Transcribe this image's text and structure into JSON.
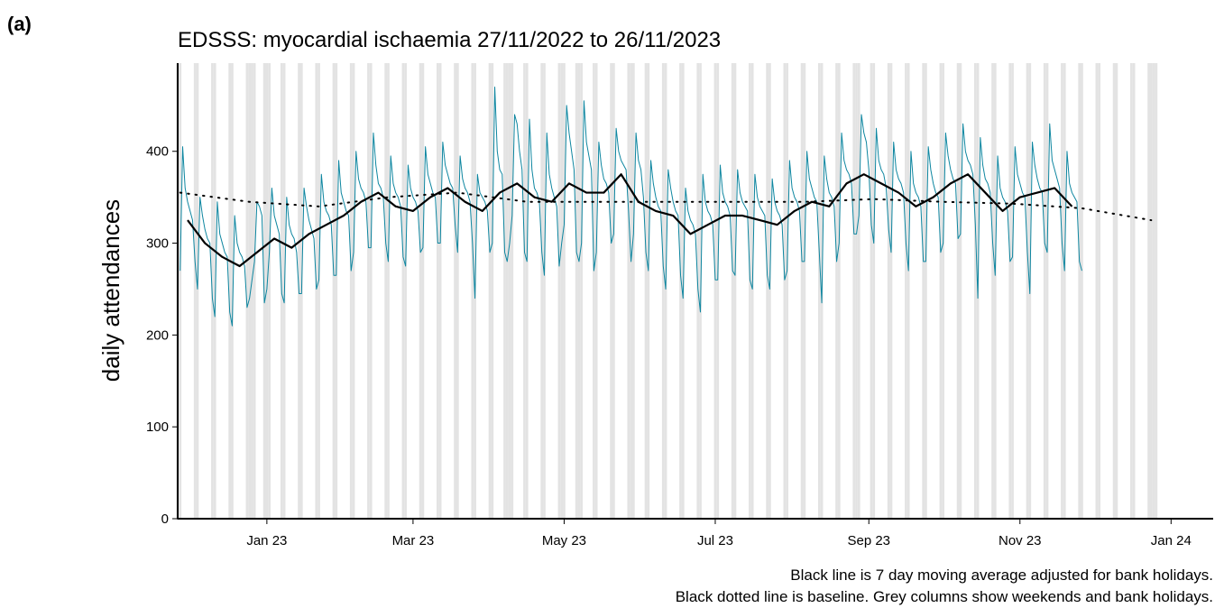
{
  "panel_label": "(a)",
  "chart_data": {
    "type": "line",
    "title": "EDSSS: myocardial ischaemia 27/11/2022 to 26/11/2023",
    "y_label": "daily attendances",
    "notes": [
      "Black line is 7 day moving average adjusted for bank holidays.",
      "Black dotted line is baseline. Grey columns show weekends and bank holidays."
    ],
    "xlim": [
      "2022-11-26",
      "2024-01-18"
    ],
    "xticks": [
      {
        "value": "2023-01-01",
        "label": "Jan 23"
      },
      {
        "value": "2023-03-01",
        "label": "Mar 23"
      },
      {
        "value": "2023-05-01",
        "label": "May 23"
      },
      {
        "value": "2023-07-01",
        "label": "Jul 23"
      },
      {
        "value": "2023-09-01",
        "label": "Sep 23"
      },
      {
        "value": "2023-11-01",
        "label": "Nov 23"
      },
      {
        "value": "2024-01-01",
        "label": "Jan 24"
      }
    ],
    "ylim": [
      0,
      496
    ],
    "yticks": [
      0,
      100,
      200,
      300,
      400
    ],
    "shading": {
      "color": "#e3e3e3",
      "weekends": true,
      "start": "2022-11-26",
      "end": "2023-12-26",
      "bank_holidays": [
        "2022-12-26",
        "2022-12-27",
        "2023-01-02",
        "2023-04-07",
        "2023-04-10",
        "2023-05-01",
        "2023-05-08",
        "2023-05-29",
        "2023-08-28",
        "2023-12-25",
        "2023-12-26"
      ]
    },
    "series": [
      {
        "color": "#0e86a0",
        "style": "solid",
        "width": 1,
        "start": "2022-11-27",
        "step_days": 1,
        "values": [
          270,
          405,
          360,
          345,
          335,
          325,
          280,
          250,
          350,
          330,
          315,
          305,
          300,
          240,
          220,
          345,
          310,
          300,
          290,
          285,
          225,
          210,
          330,
          300,
          290,
          285,
          275,
          230,
          240,
          260,
          280,
          345,
          340,
          330,
          235,
          250,
          290,
          360,
          330,
          320,
          310,
          245,
          235,
          350,
          320,
          310,
          305,
          290,
          245,
          245,
          360,
          340,
          325,
          315,
          305,
          250,
          260,
          375,
          345,
          335,
          330,
          320,
          265,
          265,
          390,
          355,
          345,
          335,
          330,
          270,
          290,
          400,
          370,
          360,
          355,
          345,
          295,
          295,
          420,
          385,
          365,
          360,
          350,
          300,
          280,
          395,
          365,
          355,
          350,
          340,
          285,
          275,
          385,
          360,
          350,
          345,
          335,
          290,
          295,
          405,
          375,
          365,
          355,
          350,
          300,
          300,
          410,
          385,
          375,
          365,
          360,
          320,
          290,
          395,
          370,
          360,
          355,
          345,
          300,
          240,
          375,
          355,
          350,
          345,
          335,
          290,
          300,
          470,
          400,
          380,
          375,
          290,
          280,
          300,
          330,
          440,
          430,
          400,
          380,
          290,
          280,
          435,
          380,
          360,
          355,
          345,
          290,
          265,
          420,
          375,
          360,
          350,
          340,
          275,
          300,
          320,
          450,
          420,
          400,
          380,
          290,
          280,
          300,
          455,
          410,
          395,
          380,
          270,
          290,
          410,
          385,
          370,
          365,
          355,
          300,
          310,
          425,
          400,
          390,
          385,
          380,
          335,
          280,
          310,
          420,
          390,
          380,
          350,
          290,
          270,
          390,
          365,
          350,
          340,
          335,
          275,
          250,
          380,
          360,
          345,
          335,
          330,
          265,
          240,
          360,
          335,
          325,
          320,
          310,
          250,
          225,
          375,
          345,
          335,
          330,
          320,
          260,
          260,
          385,
          355,
          345,
          340,
          330,
          270,
          265,
          380,
          355,
          345,
          340,
          335,
          260,
          250,
          375,
          350,
          340,
          335,
          330,
          265,
          250,
          370,
          345,
          335,
          330,
          320,
          260,
          270,
          390,
          360,
          350,
          345,
          335,
          280,
          280,
          400,
          370,
          360,
          350,
          345,
          290,
          235,
          395,
          370,
          355,
          350,
          340,
          280,
          300,
          420,
          390,
          380,
          375,
          365,
          310,
          310,
          330,
          440,
          420,
          410,
          380,
          320,
          300,
          425,
          390,
          380,
          375,
          360,
          315,
          290,
          410,
          380,
          370,
          365,
          355,
          300,
          270,
          400,
          365,
          355,
          350,
          340,
          280,
          280,
          405,
          380,
          365,
          355,
          350,
          290,
          300,
          420,
          395,
          380,
          370,
          365,
          305,
          310,
          430,
          400,
          390,
          385,
          375,
          320,
          240,
          415,
          385,
          370,
          365,
          355,
          300,
          265,
          395,
          360,
          350,
          345,
          335,
          280,
          285,
          405,
          375,
          365,
          355,
          350,
          290,
          245,
          410,
          385,
          370,
          360,
          355,
          300,
          290,
          430,
          390,
          380,
          370,
          360,
          300,
          270,
          400,
          365,
          355,
          350,
          345,
          280,
          270
        ]
      },
      {
        "color": "#000000",
        "style": "solid",
        "width": 2.2,
        "start": "2022-11-30",
        "step_days": 7,
        "values": [
          325,
          300,
          285,
          275,
          290,
          305,
          295,
          310,
          320,
          330,
          345,
          355,
          340,
          335,
          350,
          360,
          345,
          335,
          355,
          365,
          350,
          345,
          365,
          355,
          355,
          375,
          345,
          335,
          330,
          310,
          320,
          330,
          330,
          325,
          320,
          335,
          345,
          340,
          365,
          375,
          365,
          355,
          340,
          350,
          365,
          375,
          355,
          335,
          350,
          355,
          360,
          340
        ]
      },
      {
        "color": "#000000",
        "style": "dotted",
        "width": 2,
        "start": "2022-11-27",
        "step_days": 28,
        "values": [
          355,
          345,
          340,
          350,
          355,
          345,
          345,
          345,
          345,
          345,
          348,
          345,
          343,
          338,
          325
        ]
      }
    ]
  }
}
